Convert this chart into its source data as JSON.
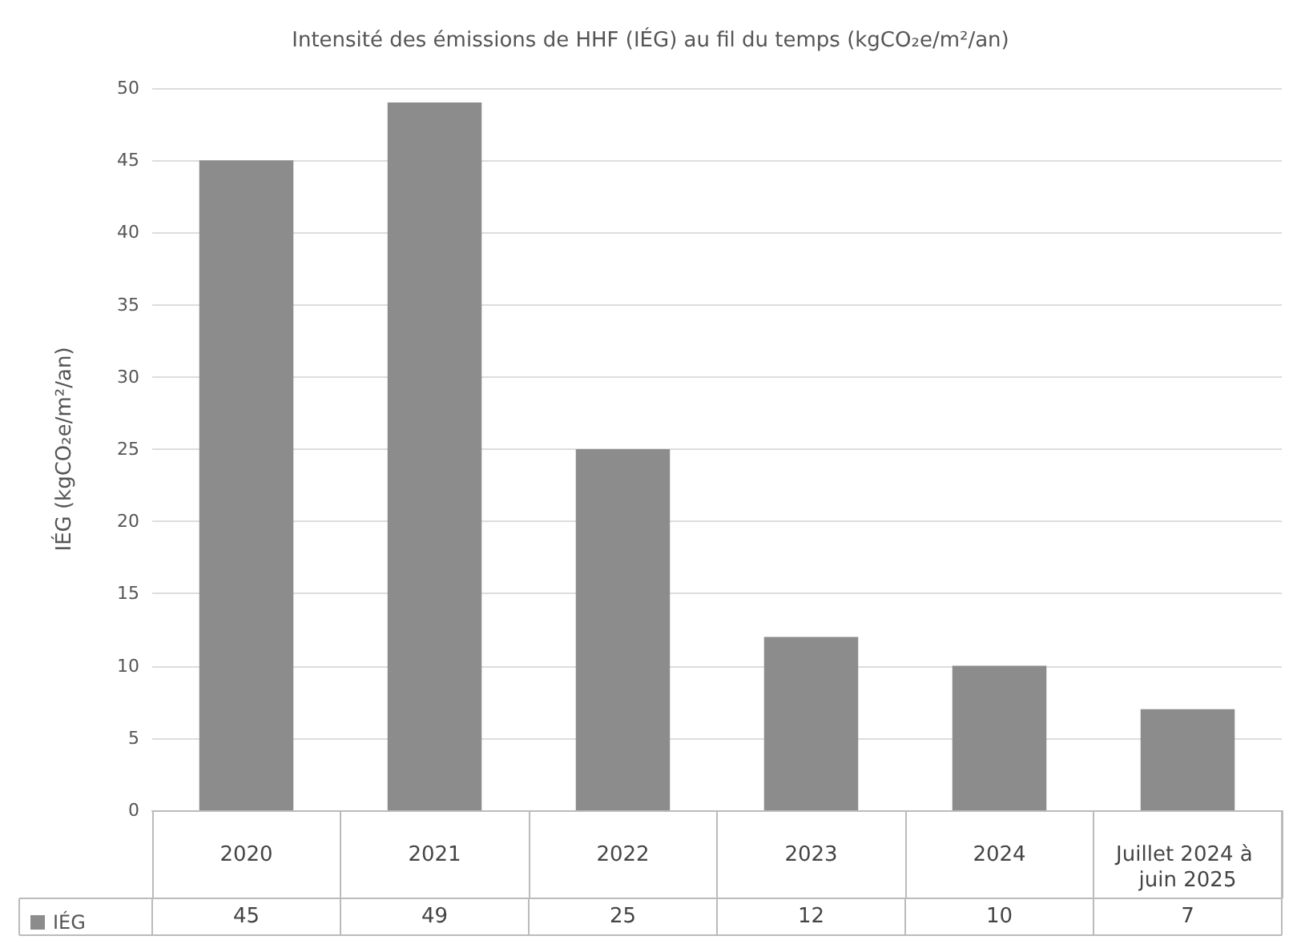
{
  "chart_data": {
    "type": "bar",
    "title": "Intensité des émissions de HHF (IÉG) au fil du temps (kgCO₂e/m²/an)",
    "ylabel": "IÉG (kgCO₂e/m²/an)",
    "categories": [
      "2020",
      "2021",
      "2022",
      "2023",
      "2024",
      "Juillet 2024 à juin 2025"
    ],
    "series": [
      {
        "name": "IÉG",
        "color": "#8c8c8c",
        "values": [
          45,
          49,
          25,
          12,
          10,
          7
        ]
      }
    ],
    "ylim": [
      0,
      50
    ],
    "yticks": [
      0,
      5,
      10,
      15,
      20,
      25,
      30,
      35,
      40,
      45,
      50
    ],
    "grid": "y",
    "legend": "bottom left",
    "data_labels": true
  }
}
